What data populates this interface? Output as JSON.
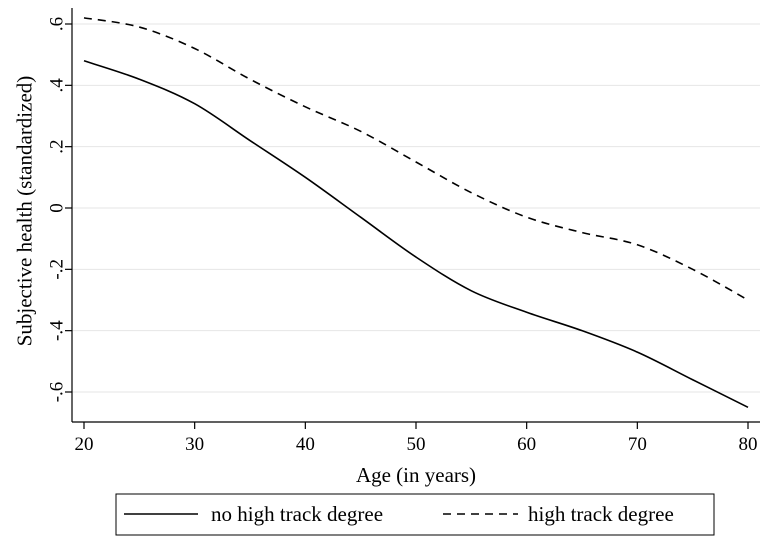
{
  "chart_data": {
    "type": "line",
    "title": "",
    "xlabel": "Age (in years)",
    "ylabel": "Subjective health (standardized)",
    "xlim": [
      20,
      80
    ],
    "ylim": [
      -0.65,
      0.62
    ],
    "x_ticks": [
      20,
      30,
      40,
      50,
      60,
      70,
      80
    ],
    "x_tick_labels": [
      "20",
      "30",
      "40",
      "50",
      "60",
      "70",
      "80"
    ],
    "y_ticks": [
      -0.6,
      -0.4,
      -0.2,
      0,
      0.2,
      0.4,
      0.6
    ],
    "y_tick_labels": [
      "-.6",
      "-.4",
      "-.2",
      "0",
      ".2",
      ".4",
      ".6"
    ],
    "grid": "horizontal",
    "legend_position": "bottom",
    "x": [
      20,
      25,
      30,
      35,
      40,
      45,
      50,
      55,
      60,
      65,
      70,
      75,
      80
    ],
    "series": [
      {
        "name": "no high track degree",
        "style": "solid",
        "color": "#000000",
        "values": [
          0.48,
          0.42,
          0.34,
          0.22,
          0.1,
          -0.03,
          -0.16,
          -0.27,
          -0.34,
          -0.4,
          -0.47,
          -0.56,
          -0.65
        ]
      },
      {
        "name": "high track degree",
        "style": "dashed",
        "color": "#000000",
        "values": [
          0.62,
          0.59,
          0.52,
          0.42,
          0.33,
          0.25,
          0.15,
          0.05,
          -0.03,
          -0.08,
          -0.12,
          -0.2,
          -0.3
        ]
      }
    ]
  }
}
